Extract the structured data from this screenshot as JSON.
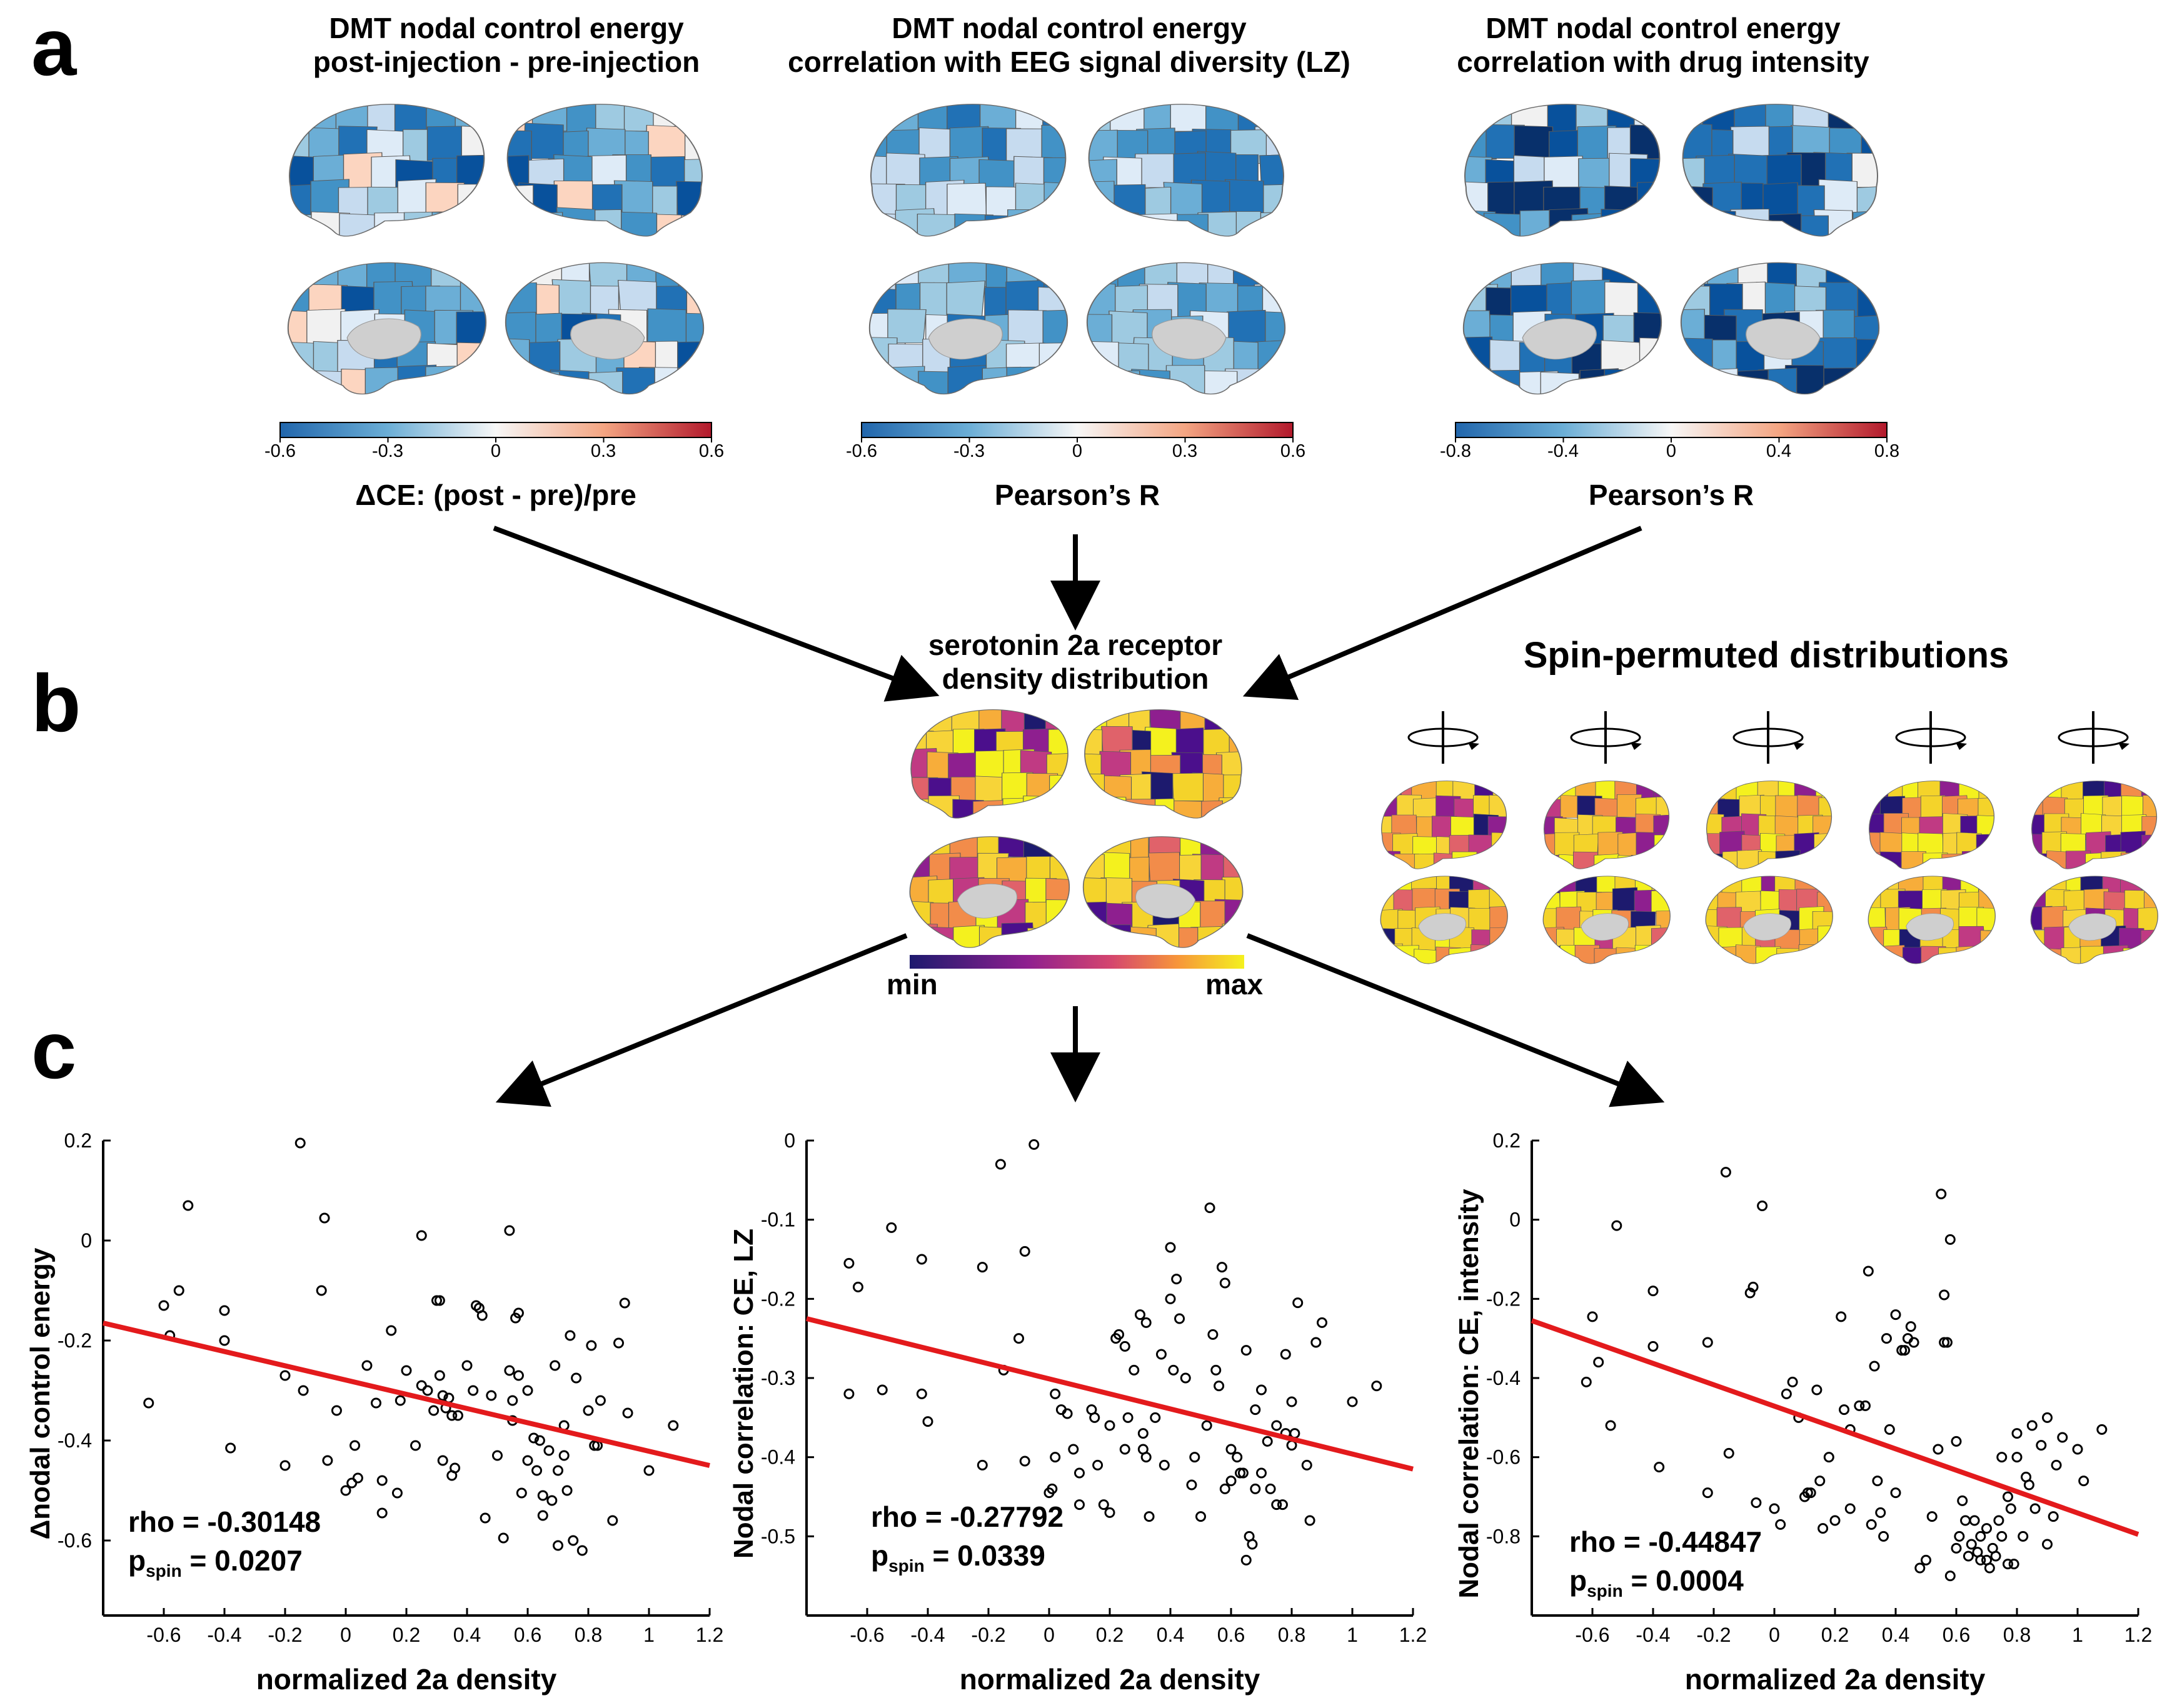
{
  "panel_a": {
    "letter": "a",
    "maps": [
      {
        "title_line1": "DMT nodal control energy",
        "title_line2": "post-injection - pre-injection",
        "ticks": [
          "-0.6",
          "-0.3",
          "0",
          "0.3",
          "0.6"
        ],
        "label": "ΔCE: (post - pre)/pre"
      },
      {
        "title_line1": "DMT nodal control energy",
        "title_line2": "correlation with EEG signal diversity (LZ)",
        "ticks": [
          "-0.6",
          "-0.3",
          "0",
          "0.3",
          "0.6"
        ],
        "label": "Pearson’s R"
      },
      {
        "title_line1": "DMT nodal control energy",
        "title_line2": "correlation with drug intensity",
        "ticks": [
          "-0.8",
          "-0.4",
          "0",
          "0.4",
          "0.8"
        ],
        "label": "Pearson’s R"
      }
    ],
    "colors": {
      "neg": "#2166ac",
      "mid": "#f7f7f7",
      "pos": "#b2182b"
    }
  },
  "panel_b": {
    "letter": "b",
    "receptor_title_line1": "serotonin 2a receptor",
    "receptor_title_line2": "density distribution",
    "cbar_min": "min",
    "cbar_max": "max",
    "spin_title": "Spin-permuted distributions",
    "spin_count": 5,
    "colors": {
      "low": "#1d1a6e",
      "mid": "#c03a83",
      "high": "#f4f11e"
    }
  },
  "panel_c": {
    "letter": "c",
    "xlabel": "normalized 2a density",
    "p_main": "p",
    "p_sub": "spin"
  },
  "chart_data": [
    {
      "type": "scatter",
      "xlabel": "normalized 2a density",
      "ylabel": "Δnodal control energy",
      "xlim": [
        -0.8,
        1.2
      ],
      "ylim": [
        -0.75,
        0.2
      ],
      "xticks": [
        -0.6,
        -0.4,
        -0.2,
        0,
        0.2,
        0.4,
        0.6,
        0.8,
        1,
        1.2
      ],
      "yticks": [
        -0.6,
        -0.4,
        -0.2,
        0,
        0.2
      ],
      "stats": {
        "rho": "rho = -0.30148",
        "p": "= 0.0207"
      },
      "fit_line": {
        "x": [
          -0.8,
          1.2
        ],
        "y": [
          -0.165,
          -0.45
        ],
        "color": "#e31a1c"
      },
      "points": [
        [
          -0.6,
          -0.13
        ],
        [
          -0.65,
          -0.325
        ],
        [
          -0.58,
          -0.19
        ],
        [
          -0.55,
          -0.1
        ],
        [
          -0.52,
          0.07
        ],
        [
          -0.4,
          -0.14
        ],
        [
          -0.4,
          -0.2
        ],
        [
          -0.38,
          -0.415
        ],
        [
          -0.2,
          -0.27
        ],
        [
          -0.2,
          -0.45
        ],
        [
          -0.15,
          0.195
        ],
        [
          -0.14,
          -0.3
        ],
        [
          -0.08,
          -0.1
        ],
        [
          -0.07,
          0.045
        ],
        [
          -0.06,
          -0.44
        ],
        [
          -0.03,
          -0.34
        ],
        [
          0,
          -0.5
        ],
        [
          0.02,
          -0.485
        ],
        [
          0.03,
          -0.41
        ],
        [
          0.04,
          -0.475
        ],
        [
          0.07,
          -0.25
        ],
        [
          0.1,
          -0.325
        ],
        [
          0.12,
          -0.545
        ],
        [
          0.12,
          -0.48
        ],
        [
          0.15,
          -0.18
        ],
        [
          0.17,
          -0.505
        ],
        [
          0.18,
          -0.32
        ],
        [
          0.2,
          -0.26
        ],
        [
          0.23,
          -0.41
        ],
        [
          0.25,
          -0.29
        ],
        [
          0.25,
          0.01
        ],
        [
          0.27,
          -0.3
        ],
        [
          0.29,
          -0.34
        ],
        [
          0.3,
          -0.12
        ],
        [
          0.31,
          -0.12
        ],
        [
          0.31,
          -0.27
        ],
        [
          0.32,
          -0.31
        ],
        [
          0.32,
          -0.44
        ],
        [
          0.33,
          -0.335
        ],
        [
          0.34,
          -0.315
        ],
        [
          0.35,
          -0.35
        ],
        [
          0.35,
          -0.47
        ],
        [
          0.36,
          -0.455
        ],
        [
          0.37,
          -0.35
        ],
        [
          0.4,
          -0.25
        ],
        [
          0.42,
          -0.3
        ],
        [
          0.43,
          -0.13
        ],
        [
          0.44,
          -0.135
        ],
        [
          0.45,
          -0.15
        ],
        [
          0.46,
          -0.555
        ],
        [
          0.48,
          -0.31
        ],
        [
          0.5,
          -0.43
        ],
        [
          0.52,
          -0.595
        ],
        [
          0.54,
          0.02
        ],
        [
          0.54,
          -0.26
        ],
        [
          0.55,
          -0.32
        ],
        [
          0.55,
          -0.36
        ],
        [
          0.56,
          -0.155
        ],
        [
          0.57,
          -0.145
        ],
        [
          0.57,
          -0.27
        ],
        [
          0.58,
          -0.505
        ],
        [
          0.6,
          -0.44
        ],
        [
          0.6,
          -0.3
        ],
        [
          0.62,
          -0.395
        ],
        [
          0.63,
          -0.46
        ],
        [
          0.64,
          -0.4
        ],
        [
          0.65,
          -0.55
        ],
        [
          0.65,
          -0.51
        ],
        [
          0.67,
          -0.42
        ],
        [
          0.68,
          -0.52
        ],
        [
          0.69,
          -0.25
        ],
        [
          0.7,
          -0.61
        ],
        [
          0.7,
          -0.46
        ],
        [
          0.72,
          -0.43
        ],
        [
          0.73,
          -0.5
        ],
        [
          0.74,
          -0.19
        ],
        [
          0.75,
          -0.6
        ],
        [
          0.76,
          -0.275
        ],
        [
          0.78,
          -0.62
        ],
        [
          0.8,
          -0.34
        ],
        [
          0.81,
          -0.21
        ],
        [
          0.82,
          -0.41
        ],
        [
          0.83,
          -0.41
        ],
        [
          0.84,
          -0.32
        ],
        [
          0.88,
          -0.56
        ],
        [
          0.9,
          -0.205
        ],
        [
          0.92,
          -0.125
        ],
        [
          0.93,
          -0.345
        ],
        [
          1,
          -0.46
        ],
        [
          1.08,
          -0.37
        ],
        [
          0.72,
          -0.37
        ]
      ]
    },
    {
      "type": "scatter",
      "xlabel": "normalized 2a density",
      "ylabel": "Nodal correlation: CE, LZ",
      "xlim": [
        -0.8,
        1.2
      ],
      "ylim": [
        -0.6,
        0
      ],
      "xticks": [
        -0.6,
        -0.4,
        -0.2,
        0,
        0.2,
        0.4,
        0.6,
        0.8,
        1,
        1.2
      ],
      "yticks": [
        -0.5,
        -0.4,
        -0.3,
        -0.2,
        -0.1,
        0
      ],
      "stats": {
        "rho": "rho = -0.27792",
        "p": "= 0.0339"
      },
      "fit_line": {
        "x": [
          -0.8,
          1.2
        ],
        "y": [
          -0.225,
          -0.415
        ],
        "color": "#e31a1c"
      },
      "points": [
        [
          -0.66,
          -0.155
        ],
        [
          -0.63,
          -0.185
        ],
        [
          -0.66,
          -0.32
        ],
        [
          -0.55,
          -0.315
        ],
        [
          -0.52,
          -0.11
        ],
        [
          -0.42,
          -0.15
        ],
        [
          -0.42,
          -0.32
        ],
        [
          -0.4,
          -0.355
        ],
        [
          -0.22,
          -0.16
        ],
        [
          -0.22,
          -0.41
        ],
        [
          -0.16,
          -0.03
        ],
        [
          -0.15,
          -0.29
        ],
        [
          -0.1,
          -0.25
        ],
        [
          -0.08,
          -0.14
        ],
        [
          -0.08,
          -0.405
        ],
        [
          -0.05,
          -0.005
        ],
        [
          0,
          -0.445
        ],
        [
          0.01,
          -0.44
        ],
        [
          0.02,
          -0.32
        ],
        [
          0.02,
          -0.4
        ],
        [
          0.04,
          -0.34
        ],
        [
          0.06,
          -0.345
        ],
        [
          0.08,
          -0.39
        ],
        [
          0.1,
          -0.46
        ],
        [
          0.1,
          -0.42
        ],
        [
          0.14,
          -0.34
        ],
        [
          0.15,
          -0.35
        ],
        [
          0.16,
          -0.41
        ],
        [
          0.18,
          -0.46
        ],
        [
          0.2,
          -0.47
        ],
        [
          0.2,
          -0.36
        ],
        [
          0.22,
          -0.25
        ],
        [
          0.23,
          -0.245
        ],
        [
          0.25,
          -0.26
        ],
        [
          0.25,
          -0.39
        ],
        [
          0.26,
          -0.35
        ],
        [
          0.28,
          -0.29
        ],
        [
          0.3,
          -0.22
        ],
        [
          0.31,
          -0.37
        ],
        [
          0.31,
          -0.39
        ],
        [
          0.32,
          -0.4
        ],
        [
          0.32,
          -0.23
        ],
        [
          0.33,
          -0.475
        ],
        [
          0.35,
          -0.35
        ],
        [
          0.37,
          -0.27
        ],
        [
          0.38,
          -0.41
        ],
        [
          0.4,
          -0.135
        ],
        [
          0.4,
          -0.2
        ],
        [
          0.41,
          -0.29
        ],
        [
          0.42,
          -0.175
        ],
        [
          0.43,
          -0.225
        ],
        [
          0.45,
          -0.3
        ],
        [
          0.47,
          -0.435
        ],
        [
          0.48,
          -0.4
        ],
        [
          0.5,
          -0.475
        ],
        [
          0.52,
          -0.36
        ],
        [
          0.53,
          -0.085
        ],
        [
          0.54,
          -0.245
        ],
        [
          0.55,
          -0.29
        ],
        [
          0.56,
          -0.31
        ],
        [
          0.57,
          -0.16
        ],
        [
          0.58,
          -0.18
        ],
        [
          0.58,
          -0.44
        ],
        [
          0.6,
          -0.39
        ],
        [
          0.6,
          -0.43
        ],
        [
          0.62,
          -0.4
        ],
        [
          0.63,
          -0.42
        ],
        [
          0.64,
          -0.42
        ],
        [
          0.65,
          -0.265
        ],
        [
          0.65,
          -0.53
        ],
        [
          0.66,
          -0.5
        ],
        [
          0.67,
          -0.51
        ],
        [
          0.68,
          -0.44
        ],
        [
          0.68,
          -0.34
        ],
        [
          0.7,
          -0.42
        ],
        [
          0.7,
          -0.315
        ],
        [
          0.72,
          -0.38
        ],
        [
          0.73,
          -0.44
        ],
        [
          0.75,
          -0.36
        ],
        [
          0.75,
          -0.46
        ],
        [
          0.77,
          -0.46
        ],
        [
          0.78,
          -0.27
        ],
        [
          0.78,
          -0.37
        ],
        [
          0.8,
          -0.385
        ],
        [
          0.81,
          -0.37
        ],
        [
          0.82,
          -0.205
        ],
        [
          0.85,
          -0.41
        ],
        [
          0.86,
          -0.48
        ],
        [
          0.88,
          -0.255
        ],
        [
          0.9,
          -0.23
        ],
        [
          1,
          -0.33
        ],
        [
          1.08,
          -0.31
        ],
        [
          0.8,
          -0.33
        ]
      ]
    },
    {
      "type": "scatter",
      "xlabel": "normalized 2a density",
      "ylabel": "Nodal correlation: CE, intensity",
      "xlim": [
        -0.8,
        1.2
      ],
      "ylim": [
        -1.0,
        0.2
      ],
      "xticks": [
        -0.6,
        -0.4,
        -0.2,
        0,
        0.2,
        0.4,
        0.6,
        0.8,
        1,
        1.2
      ],
      "yticks": [
        -0.8,
        -0.6,
        -0.4,
        -0.2,
        0,
        0.2
      ],
      "stats": {
        "rho": "rho = -0.44847",
        "p": "= 0.0004"
      },
      "fit_line": {
        "x": [
          -0.8,
          1.2
        ],
        "y": [
          -0.255,
          -0.795
        ],
        "color": "#e31a1c"
      },
      "points": [
        [
          -0.62,
          -0.41
        ],
        [
          -0.6,
          -0.245
        ],
        [
          -0.58,
          -0.36
        ],
        [
          -0.54,
          -0.52
        ],
        [
          -0.52,
          -0.015
        ],
        [
          -0.4,
          -0.18
        ],
        [
          -0.4,
          -0.32
        ],
        [
          -0.38,
          -0.625
        ],
        [
          -0.22,
          -0.31
        ],
        [
          -0.22,
          -0.69
        ],
        [
          -0.16,
          0.12
        ],
        [
          -0.15,
          -0.59
        ],
        [
          -0.08,
          -0.185
        ],
        [
          -0.07,
          -0.17
        ],
        [
          -0.06,
          -0.715
        ],
        [
          -0.04,
          0.035
        ],
        [
          0,
          -0.73
        ],
        [
          0.02,
          -0.77
        ],
        [
          0.04,
          -0.44
        ],
        [
          0.06,
          -0.41
        ],
        [
          0.08,
          -0.5
        ],
        [
          0.1,
          -0.7
        ],
        [
          0.11,
          -0.69
        ],
        [
          0.12,
          -0.69
        ],
        [
          0.14,
          -0.43
        ],
        [
          0.15,
          -0.66
        ],
        [
          0.16,
          -0.78
        ],
        [
          0.18,
          -0.6
        ],
        [
          0.2,
          -0.76
        ],
        [
          0.22,
          -0.245
        ],
        [
          0.23,
          -0.48
        ],
        [
          0.25,
          -0.73
        ],
        [
          0.25,
          -0.53
        ],
        [
          0.28,
          -0.47
        ],
        [
          0.3,
          -0.47
        ],
        [
          0.31,
          -0.13
        ],
        [
          0.32,
          -0.77
        ],
        [
          0.33,
          -0.37
        ],
        [
          0.34,
          -0.66
        ],
        [
          0.35,
          -0.74
        ],
        [
          0.36,
          -0.8
        ],
        [
          0.37,
          -0.3
        ],
        [
          0.38,
          -0.53
        ],
        [
          0.4,
          -0.69
        ],
        [
          0.4,
          -0.24
        ],
        [
          0.42,
          -0.33
        ],
        [
          0.43,
          -0.33
        ],
        [
          0.44,
          -0.3
        ],
        [
          0.45,
          -0.27
        ],
        [
          0.46,
          -0.31
        ],
        [
          0.48,
          -0.88
        ],
        [
          0.5,
          -0.86
        ],
        [
          0.52,
          -0.75
        ],
        [
          0.54,
          -0.58
        ],
        [
          0.55,
          0.065
        ],
        [
          0.56,
          -0.19
        ],
        [
          0.56,
          -0.31
        ],
        [
          0.57,
          -0.31
        ],
        [
          0.58,
          -0.05
        ],
        [
          0.58,
          -0.9
        ],
        [
          0.6,
          -0.83
        ],
        [
          0.6,
          -0.56
        ],
        [
          0.61,
          -0.8
        ],
        [
          0.62,
          -0.71
        ],
        [
          0.63,
          -0.76
        ],
        [
          0.64,
          -0.85
        ],
        [
          0.65,
          -0.82
        ],
        [
          0.66,
          -0.76
        ],
        [
          0.67,
          -0.84
        ],
        [
          0.68,
          -0.86
        ],
        [
          0.68,
          -0.8
        ],
        [
          0.7,
          -0.86
        ],
        [
          0.7,
          -0.78
        ],
        [
          0.71,
          -0.88
        ],
        [
          0.72,
          -0.83
        ],
        [
          0.73,
          -0.85
        ],
        [
          0.74,
          -0.76
        ],
        [
          0.75,
          -0.8
        ],
        [
          0.75,
          -0.6
        ],
        [
          0.77,
          -0.7
        ],
        [
          0.77,
          -0.87
        ],
        [
          0.78,
          -0.73
        ],
        [
          0.79,
          -0.87
        ],
        [
          0.8,
          -0.54
        ],
        [
          0.8,
          -0.6
        ],
        [
          0.82,
          -0.8
        ],
        [
          0.83,
          -0.65
        ],
        [
          0.84,
          -0.67
        ],
        [
          0.85,
          -0.52
        ],
        [
          0.86,
          -0.73
        ],
        [
          0.88,
          -0.57
        ],
        [
          0.9,
          -0.5
        ],
        [
          0.92,
          -0.75
        ],
        [
          0.93,
          -0.62
        ],
        [
          0.95,
          -0.55
        ],
        [
          1,
          -0.58
        ],
        [
          1.08,
          -0.53
        ],
        [
          1.02,
          -0.66
        ],
        [
          0.9,
          -0.82
        ]
      ]
    }
  ]
}
